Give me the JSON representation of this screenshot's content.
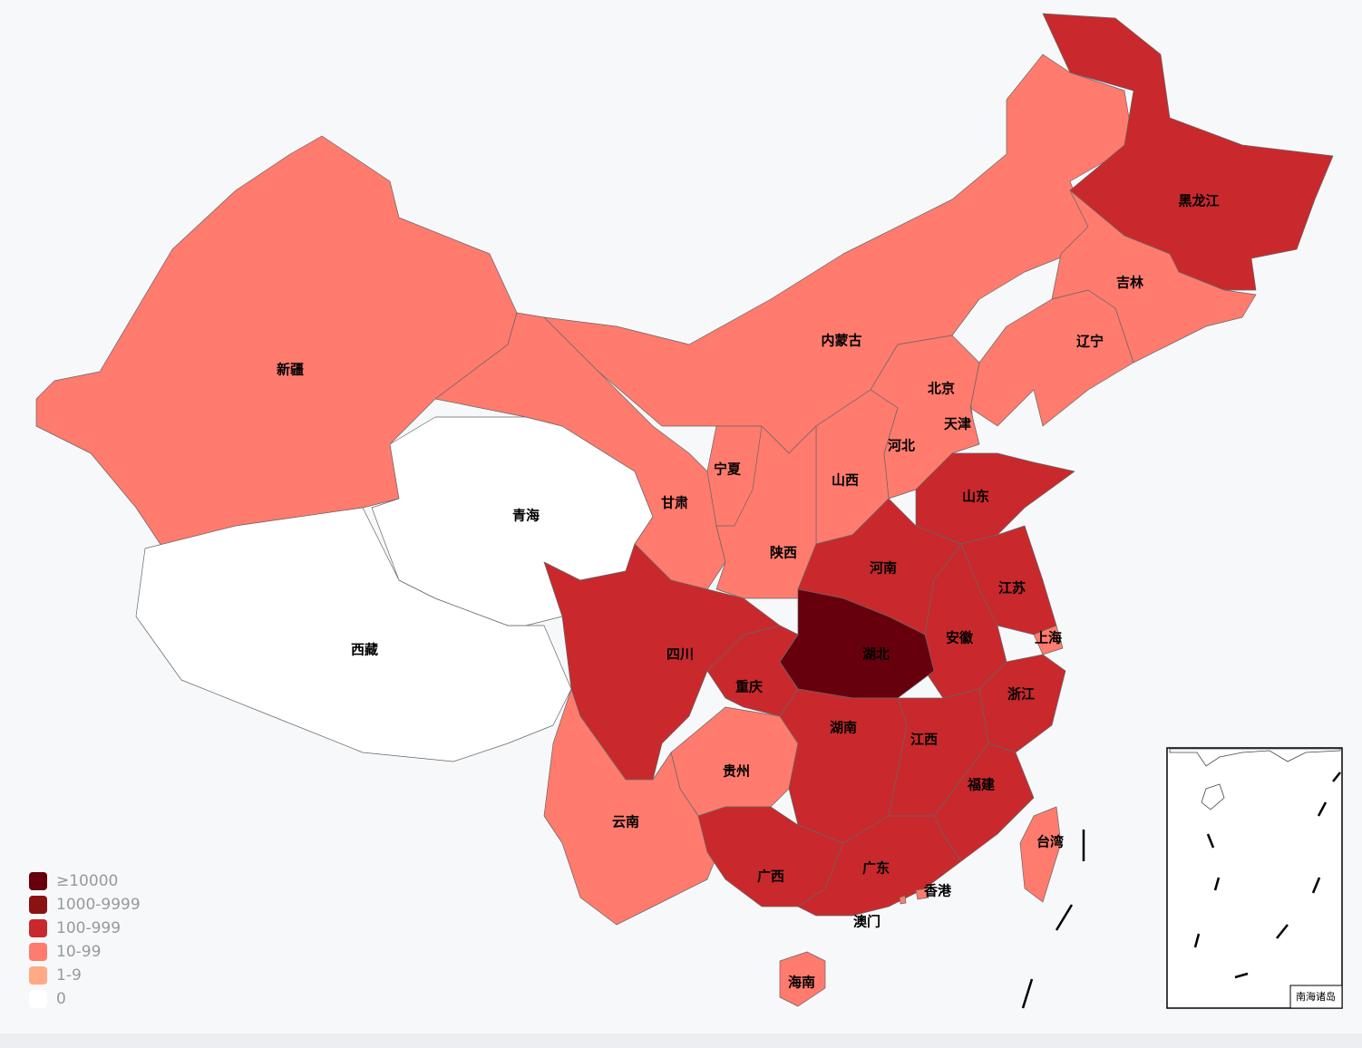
{
  "provinces": [
    {
      "name": "新疆",
      "color": "#ff7b6e"
    },
    {
      "name": "西藏",
      "color": "#ffffff"
    },
    {
      "name": "青海",
      "color": "#ffffff"
    },
    {
      "name": "甘肃",
      "color": "#ff7b6e"
    },
    {
      "name": "内蒙古",
      "color": "#ff7b6e"
    },
    {
      "name": "黑龙江",
      "color": "#c9292c"
    },
    {
      "name": "吉林",
      "color": "#ff7b6e"
    },
    {
      "name": "辽宁",
      "color": "#ff7b6e"
    },
    {
      "name": "北京",
      "color": "#c9292c"
    },
    {
      "name": "天津",
      "color": "#ff7b6e"
    },
    {
      "name": "河北",
      "color": "#ff7b6e"
    },
    {
      "name": "山西",
      "color": "#ff7b6e"
    },
    {
      "name": "陕西",
      "color": "#ff7b6e"
    },
    {
      "name": "宁夏",
      "color": "#ff7b6e"
    },
    {
      "name": "山东",
      "color": "#c9292c"
    },
    {
      "name": "河南",
      "color": "#c9292c"
    },
    {
      "name": "江苏",
      "color": "#c9292c"
    },
    {
      "name": "上海",
      "color": "#ff7b6e"
    },
    {
      "name": "安徽",
      "color": "#c9292c"
    },
    {
      "name": "浙江",
      "color": "#c9292c"
    },
    {
      "name": "湖北",
      "color": "#67000d"
    },
    {
      "name": "重庆",
      "color": "#c9292c"
    },
    {
      "name": "四川",
      "color": "#c9292c"
    },
    {
      "name": "贵州",
      "color": "#ff7b6e"
    },
    {
      "name": "云南",
      "color": "#ff7b6e"
    },
    {
      "name": "湖南",
      "color": "#c9292c"
    },
    {
      "name": "江西",
      "color": "#c9292c"
    },
    {
      "name": "福建",
      "color": "#c9292c"
    },
    {
      "name": "广西",
      "color": "#c9292c"
    },
    {
      "name": "广东",
      "color": "#c9292c"
    },
    {
      "name": "海南",
      "color": "#ff7b6e"
    },
    {
      "name": "台湾",
      "color": "#ff7b6e"
    },
    {
      "name": "香港",
      "color": "#ff7b6e"
    },
    {
      "name": "澳门",
      "color": "#ff7b6e"
    }
  ],
  "legend": [
    {
      "label": "≥10000",
      "color": "#67000d"
    },
    {
      "label": "1000-9999",
      "color": "#8b1212"
    },
    {
      "label": "100-999",
      "color": "#c9292c"
    },
    {
      "label": "10-99",
      "color": "#ff7b6e"
    },
    {
      "label": "1-9",
      "color": "#ffaa85"
    },
    {
      "label": "0",
      "color": "#ffffff"
    }
  ],
  "inset_label": "南海诸岛"
}
